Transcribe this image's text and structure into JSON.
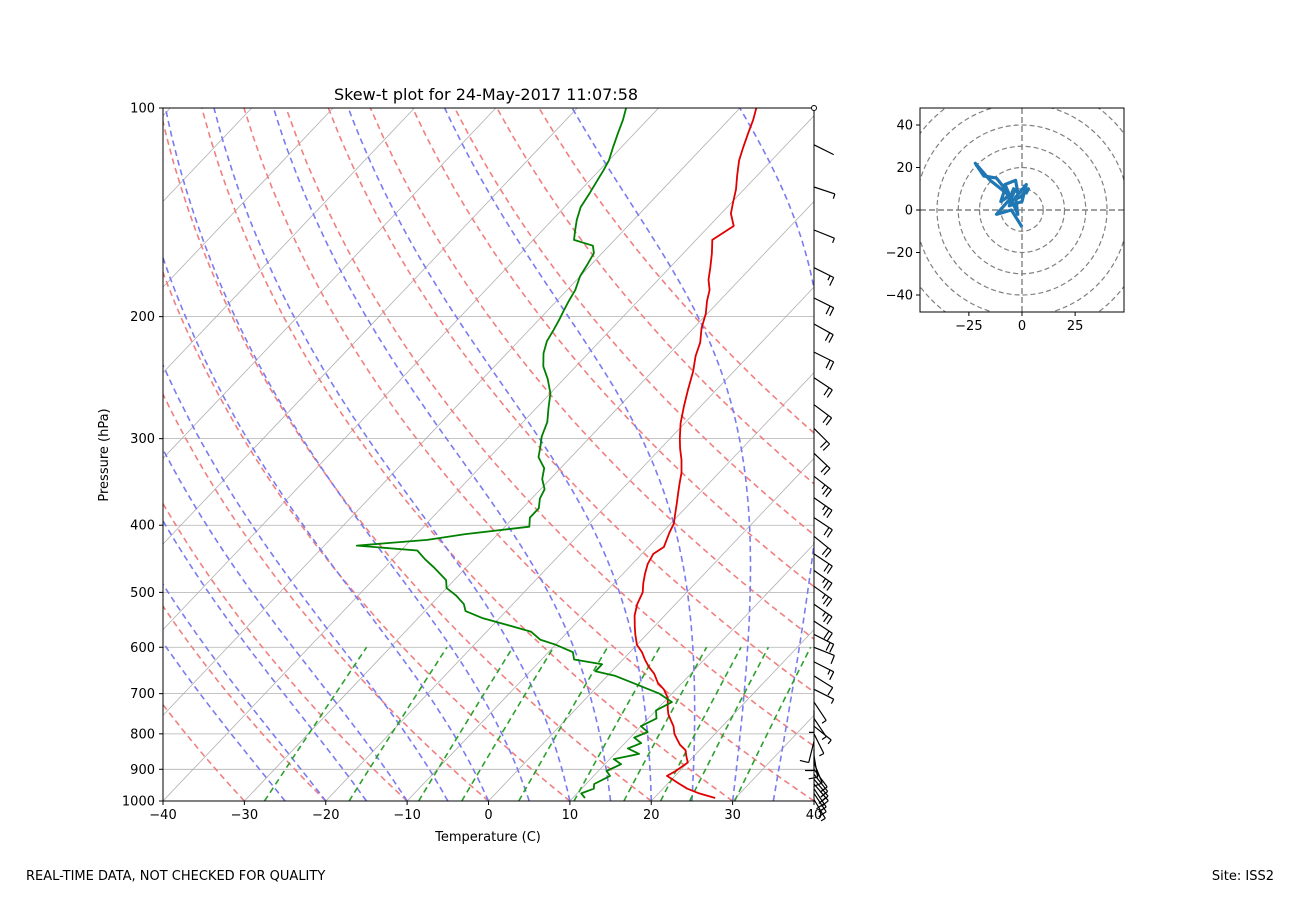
{
  "footer": {
    "left_note": "REAL-TIME DATA, NOT CHECKED FOR QUALITY",
    "site_label": "Site: ISS2"
  },
  "colors": {
    "temperature": "#e00000",
    "dewpoint": "#008000",
    "dry_adiabat": "#f08080",
    "moist_adiabat": "#7b7bf0",
    "mixing_ratio": "#2ca02c",
    "hodograph": "#1f77b4"
  },
  "chart_data": [
    {
      "type": "line",
      "chart": "skew-t",
      "title": "Skew-t plot for 24-May-2017 11:07:58",
      "xlabel": "Temperature (C)",
      "ylabel": "Pressure (hPa)",
      "xlim": [
        -40,
        40
      ],
      "ylim": [
        1000,
        100
      ],
      "y_scale": "log",
      "grid": true,
      "x_ticks": [
        -40,
        -30,
        -20,
        -10,
        0,
        10,
        20,
        30,
        40
      ],
      "y_ticks": [
        100,
        200,
        300,
        400,
        500,
        600,
        700,
        800,
        900,
        1000
      ],
      "series": [
        {
          "role": "temperature",
          "points": [
            [
              27.5,
              990
            ],
            [
              25,
              975
            ],
            [
              23,
              960
            ],
            [
              21.5,
              945
            ],
            [
              19,
              920
            ],
            [
              19.5,
              905
            ],
            [
              20,
              880
            ],
            [
              19,
              860
            ],
            [
              18.3,
              845
            ],
            [
              17,
              830
            ],
            [
              16,
              815
            ],
            [
              15,
              800
            ],
            [
              14,
              780
            ],
            [
              13,
              765
            ],
            [
              12,
              750
            ],
            [
              11.2,
              735
            ],
            [
              10,
              710
            ],
            [
              8.5,
              690
            ],
            [
              7,
              675
            ],
            [
              5.5,
              655
            ],
            [
              4,
              640
            ],
            [
              2.7,
              625
            ],
            [
              1.5,
              610
            ],
            [
              0,
              595
            ],
            [
              -1.4,
              575
            ],
            [
              -2.4,
              560
            ],
            [
              -3.7,
              540
            ],
            [
              -4.7,
              520
            ],
            [
              -5.4,
              500
            ],
            [
              -6.4,
              485
            ],
            [
              -7.3,
              470
            ],
            [
              -8.1,
              455
            ],
            [
              -8.6,
              440
            ],
            [
              -8.1,
              430
            ],
            [
              -8.6,
              420
            ],
            [
              -9.1,
              410
            ],
            [
              -9.6,
              398
            ],
            [
              -10.6,
              385
            ],
            [
              -11.6,
              372
            ],
            [
              -12.6,
              360
            ],
            [
              -13.6,
              348
            ],
            [
              -14.6,
              336
            ],
            [
              -16.1,
              322
            ],
            [
              -17.6,
              310
            ],
            [
              -18.8,
              300
            ],
            [
              -20.5,
              285
            ],
            [
              -22,
              270
            ],
            [
              -23.5,
              255
            ],
            [
              -25,
              240
            ],
            [
              -26.5,
              228
            ],
            [
              -27.5,
              218
            ],
            [
              -29,
              208
            ],
            [
              -30.2,
              198
            ],
            [
              -31.5,
              190
            ],
            [
              -32.5,
              183
            ],
            [
              -33.8,
              177
            ],
            [
              -35,
              170
            ],
            [
              -36.5,
              162
            ],
            [
              -38,
              155
            ],
            [
              -37,
              148
            ],
            [
              -38.8,
              142
            ],
            [
              -39.8,
              137
            ],
            [
              -41,
              131
            ],
            [
              -42.5,
              125
            ],
            [
              -44,
              119
            ],
            [
              -45,
              114
            ],
            [
              -46,
              109
            ],
            [
              -47,
              104
            ],
            [
              -48,
              100
            ]
          ]
        },
        {
          "role": "dewpoint",
          "points": [
            [
              11.5,
              990
            ],
            [
              10.5,
              975
            ],
            [
              11.5,
              960
            ],
            [
              11,
              945
            ],
            [
              12,
              920
            ],
            [
              11,
              905
            ],
            [
              12,
              885
            ],
            [
              10.5,
              870
            ],
            [
              13,
              855
            ],
            [
              11,
              840
            ],
            [
              12,
              825
            ],
            [
              10.5,
              810
            ],
            [
              11.5,
              795
            ],
            [
              10,
              780
            ],
            [
              11,
              760
            ],
            [
              10,
              740
            ],
            [
              11,
              720
            ],
            [
              8.5,
              700
            ],
            [
              1,
              660
            ],
            [
              -2,
              650
            ],
            [
              -2,
              635
            ],
            [
              -6,
              625
            ],
            [
              -7,
              610
            ],
            [
              -10,
              595
            ],
            [
              -12.5,
              585
            ],
            [
              -14.5,
              570
            ],
            [
              -18,
              558
            ],
            [
              -22,
              545
            ],
            [
              -25,
              532
            ],
            [
              -26,
              520
            ],
            [
              -28,
              505
            ],
            [
              -30,
              493
            ],
            [
              -31,
              480
            ],
            [
              -34,
              460
            ],
            [
              -36,
              448
            ],
            [
              -38,
              435
            ],
            [
              -46,
              428
            ],
            [
              -38,
              420
            ],
            [
              -34,
              412
            ],
            [
              -27,
              402
            ],
            [
              -28,
              390
            ],
            [
              -28,
              378
            ],
            [
              -29,
              366
            ],
            [
              -29.5,
              355
            ],
            [
              -31,
              343
            ],
            [
              -32,
              331
            ],
            [
              -34,
              319
            ],
            [
              -35,
              308
            ],
            [
              -36,
              298
            ],
            [
              -37,
              284
            ],
            [
              -38.5,
              271
            ],
            [
              -40,
              258
            ],
            [
              -42,
              246
            ],
            [
              -44,
              236
            ],
            [
              -45.5,
              226
            ],
            [
              -46.5,
              217
            ],
            [
              -47,
              209
            ],
            [
              -47.5,
              202
            ],
            [
              -48,
              196
            ],
            [
              -48.5,
              190
            ],
            [
              -49,
              183
            ],
            [
              -50,
              175
            ],
            [
              -50.5,
              168
            ],
            [
              -51,
              162
            ],
            [
              -52,
              158
            ],
            [
              -55,
              155
            ],
            [
              -56,
              150
            ],
            [
              -57,
              145
            ],
            [
              -58,
              139
            ],
            [
              -58.5,
              133
            ],
            [
              -59,
              128
            ],
            [
              -59.5,
              123
            ],
            [
              -60,
              119
            ],
            [
              -61,
              114
            ],
            [
              -62,
              109
            ],
            [
              -63,
              104
            ],
            [
              -64,
              100
            ]
          ]
        }
      ],
      "wind_barbs": [
        {
          "p": 995,
          "u": -3,
          "v": 5
        },
        {
          "p": 975,
          "u": -8,
          "v": 12
        },
        {
          "p": 960,
          "u": -10,
          "v": 15
        },
        {
          "p": 945,
          "u": -12,
          "v": 14
        },
        {
          "p": 930,
          "u": -10,
          "v": 12
        },
        {
          "p": 915,
          "u": -8,
          "v": 10
        },
        {
          "p": 900,
          "u": -6,
          "v": 8
        },
        {
          "p": 880,
          "u": -4,
          "v": 10
        },
        {
          "p": 860,
          "u": -2,
          "v": 12
        },
        {
          "p": 840,
          "u": 0,
          "v": 10
        },
        {
          "p": 820,
          "u": 2,
          "v": 8
        },
        {
          "p": 800,
          "u": -3,
          "v": 6
        },
        {
          "p": 780,
          "u": -5,
          "v": 4
        },
        {
          "p": 760,
          "u": -2,
          "v": 3
        },
        {
          "p": 740,
          "u": 0,
          "v": 5
        },
        {
          "p": 720,
          "u": -4,
          "v": 6
        },
        {
          "p": 690,
          "u": -6,
          "v": 3
        },
        {
          "p": 660,
          "u": -8,
          "v": 5
        },
        {
          "p": 630,
          "u": -12,
          "v": 6
        },
        {
          "p": 600,
          "u": -10,
          "v": 4
        },
        {
          "p": 575,
          "u": -16,
          "v": 8
        },
        {
          "p": 550,
          "u": -18,
          "v": 12
        },
        {
          "p": 520,
          "u": -20,
          "v": 14
        },
        {
          "p": 490,
          "u": -22,
          "v": 16
        },
        {
          "p": 465,
          "u": -20,
          "v": 14
        },
        {
          "p": 440,
          "u": -18,
          "v": 12
        },
        {
          "p": 415,
          "u": -16,
          "v": 13
        },
        {
          "p": 390,
          "u": -18,
          "v": 12
        },
        {
          "p": 365,
          "u": -20,
          "v": 14
        },
        {
          "p": 340,
          "u": -18,
          "v": 14
        },
        {
          "p": 315,
          "u": -16,
          "v": 15
        },
        {
          "p": 290,
          "u": -14,
          "v": 14
        },
        {
          "p": 268,
          "u": -16,
          "v": 12
        },
        {
          "p": 245,
          "u": -18,
          "v": 12
        },
        {
          "p": 225,
          "u": -20,
          "v": 10
        },
        {
          "p": 205,
          "u": -18,
          "v": 10
        },
        {
          "p": 188,
          "u": -16,
          "v": 8
        },
        {
          "p": 170,
          "u": -12,
          "v": 6
        },
        {
          "p": 150,
          "u": -5,
          "v": 2
        },
        {
          "p": 130,
          "u": -3,
          "v": 1
        },
        {
          "p": 113,
          "u": -2,
          "v": 1
        }
      ]
    },
    {
      "type": "line",
      "chart": "hodograph",
      "xlim": [
        -48,
        48
      ],
      "ylim": [
        -48,
        48
      ],
      "x_ticks": [
        -25,
        0,
        25
      ],
      "y_ticks": [
        -40,
        -20,
        0,
        20,
        40
      ],
      "range_rings": [
        10,
        20,
        30,
        40,
        50,
        60
      ],
      "points": [
        [
          0,
          -8
        ],
        [
          -5,
          0
        ],
        [
          -12,
          -2
        ],
        [
          -5,
          6
        ],
        [
          -10,
          10
        ],
        [
          -15,
          14
        ],
        [
          -22,
          22
        ],
        [
          -18,
          16
        ],
        [
          -12,
          15
        ],
        [
          -8,
          10
        ],
        [
          -10,
          4
        ],
        [
          -4,
          8
        ],
        [
          -6,
          2
        ],
        [
          0,
          4
        ],
        [
          2,
          12
        ],
        [
          -3,
          6
        ],
        [
          -2,
          -2
        ],
        [
          -8,
          12
        ],
        [
          -3,
          14
        ],
        [
          -2,
          8
        ],
        [
          -4,
          10
        ],
        [
          -6,
          4
        ],
        [
          -1,
          6
        ],
        [
          3,
          10
        ],
        [
          2,
          8
        ],
        [
          1,
          12
        ]
      ]
    }
  ]
}
